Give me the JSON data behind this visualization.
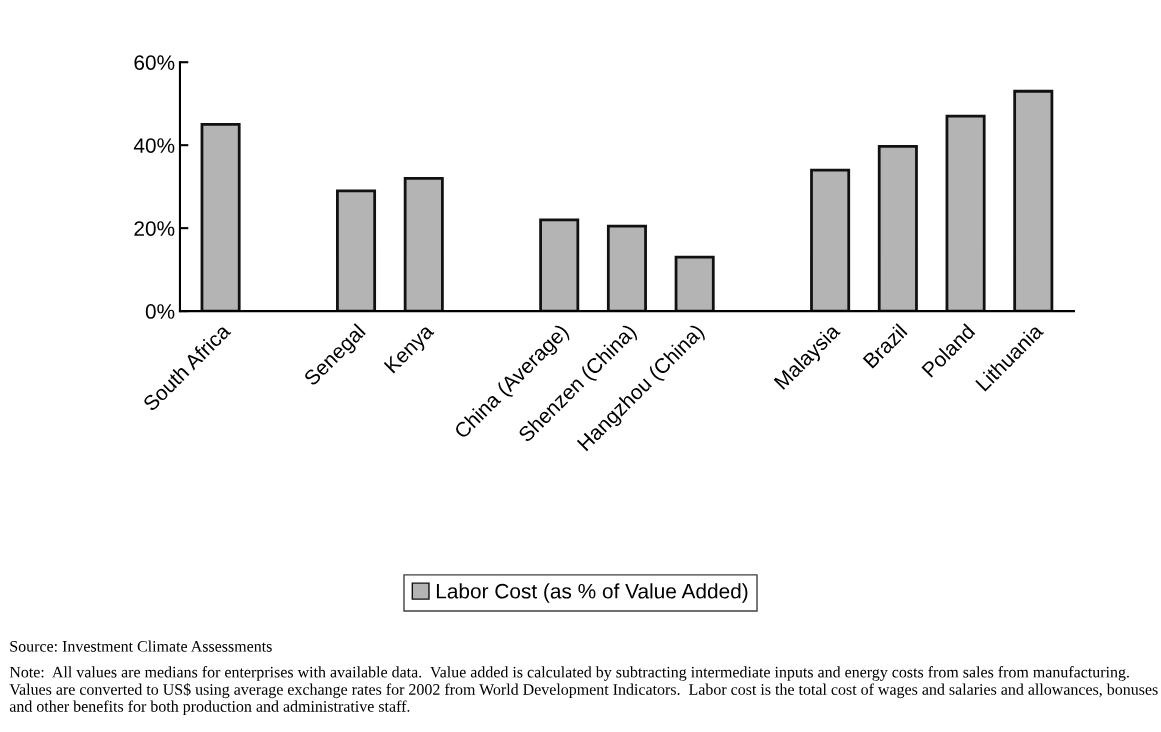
{
  "chart_data": {
    "type": "bar",
    "categories": [
      "South Africa",
      null,
      "Senegal",
      "Kenya",
      null,
      "China (Average)",
      "Shenzen (China)",
      "Hangzhou (China)",
      null,
      "Malaysia",
      "Brazil",
      "Poland",
      "Lithuania"
    ],
    "series": [
      {
        "name": "Labor Cost (as % of Value Added)",
        "color": "#b4b4b4",
        "values": [
          45,
          null,
          29,
          32,
          null,
          22,
          20.5,
          13,
          null,
          34,
          39.7,
          47,
          53
        ]
      }
    ],
    "ylim": [
      0,
      60
    ],
    "yticks": [
      {
        "value": 0,
        "label": "0%"
      },
      {
        "value": 20,
        "label": "20%"
      },
      {
        "value": 40,
        "label": "40%"
      },
      {
        "value": 60,
        "label": "60%"
      }
    ],
    "grid": false,
    "legend": "bottom",
    "annotations": [
      "Source: Investment Climate Assessments",
      "Note:  All values are medians for enterprises with available data.  Value added is calculated by subtracting intermediate inputs and energy costs from sales from manufacturing. Values are converted to US$ using average exchange rates for 2002 from World Development Indicators.  Labor cost is the total cost of wages and salaries and allowances, bonuses and other benefits for both production and administrative staff."
    ]
  }
}
